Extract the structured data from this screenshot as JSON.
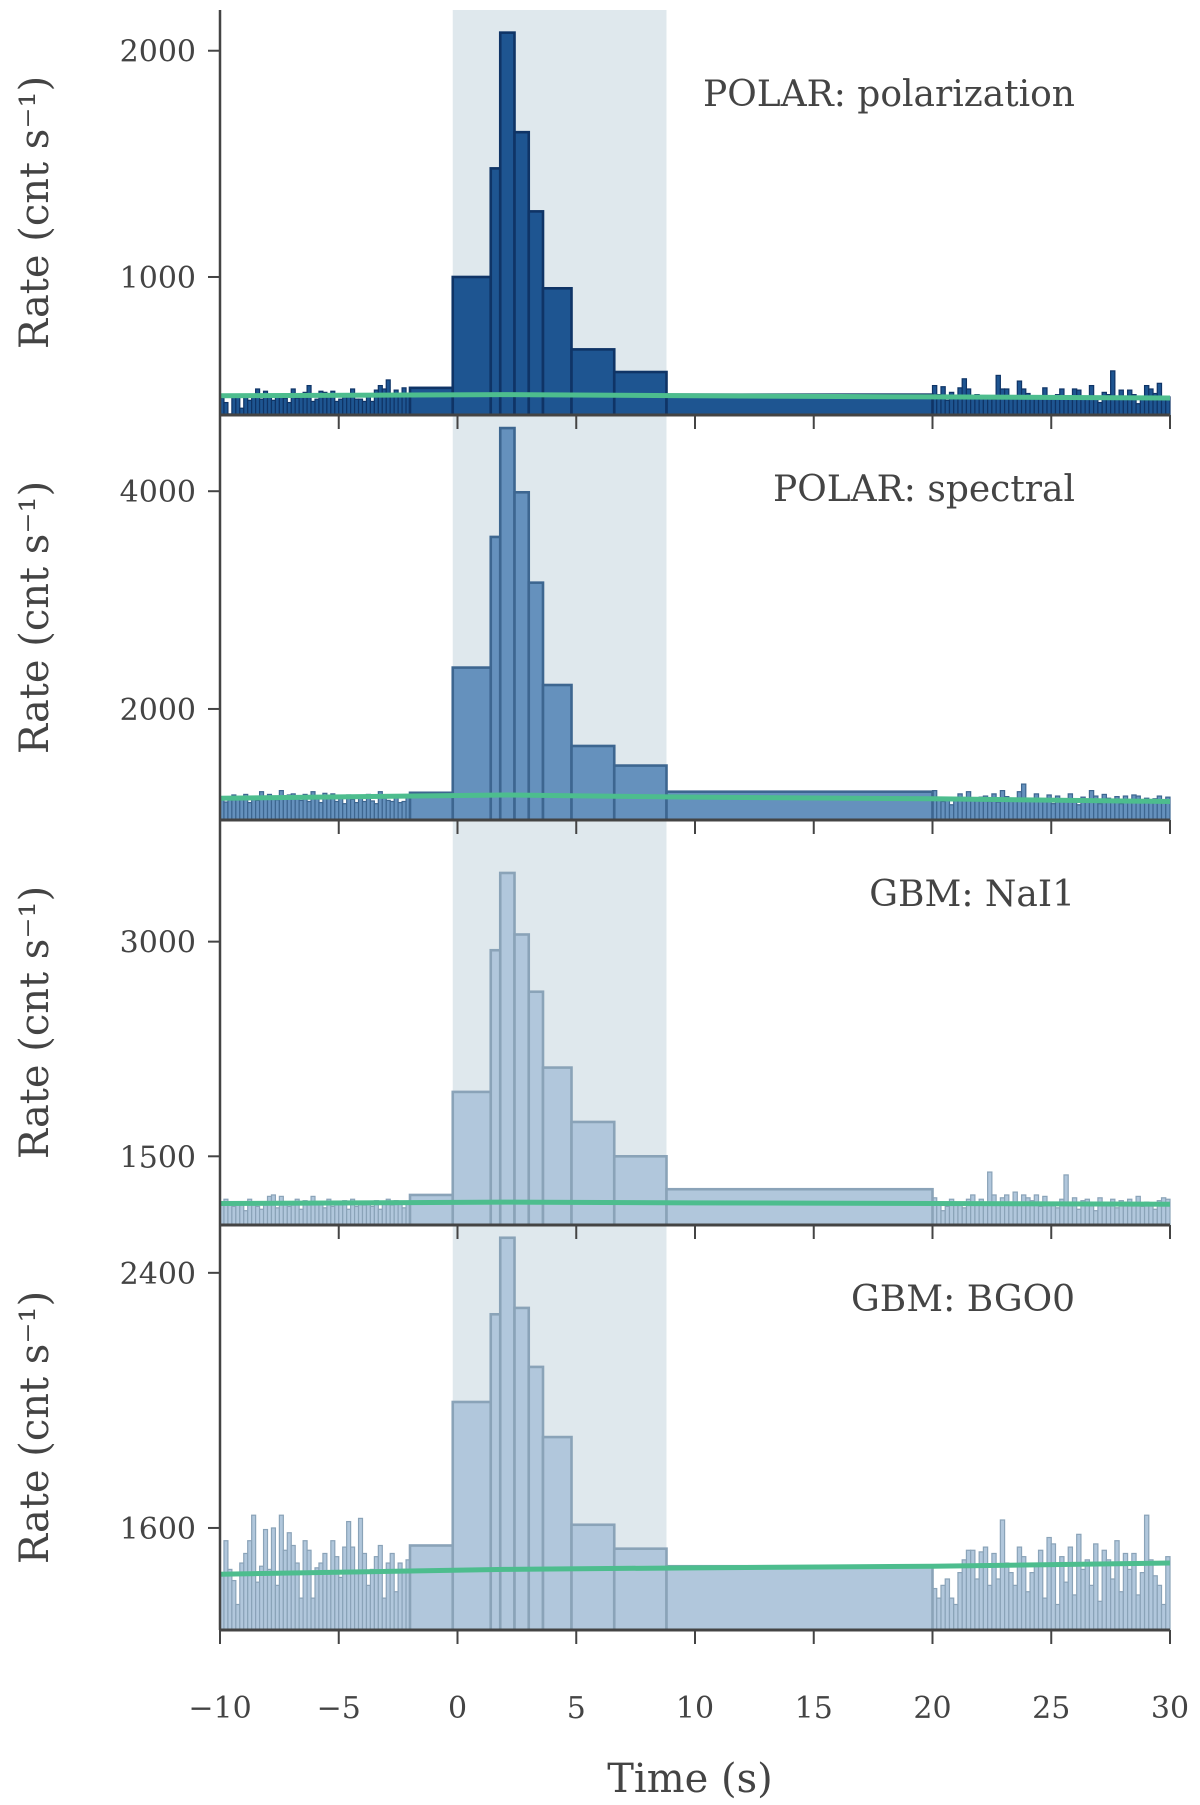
{
  "figure": {
    "xlabel": "Time (s)",
    "ylabel": "Rate (cnt s⁻¹)",
    "xlim": [
      -10,
      30
    ],
    "xticks": [
      -10,
      -5,
      0,
      5,
      10,
      15,
      20,
      25,
      30
    ],
    "xtick_labels": [
      "−10",
      "−5",
      "0",
      "5",
      "10",
      "15",
      "20",
      "25",
      "30"
    ],
    "shaded_interval": [
      -0.2,
      8.8
    ],
    "colors": {
      "background_line": "#4dbd8e",
      "shade": "#dfe8ed",
      "axis": "#444444"
    }
  },
  "chart_data": [
    {
      "type": "bar",
      "title": "POLAR: polarization",
      "xlabel": "",
      "ylabel": "Rate (cnt s⁻¹)",
      "ylim": [
        390,
        2180
      ],
      "yticks": [
        1000,
        2000
      ],
      "fill": "#1e5591",
      "edge": "#0f3466",
      "bins": [
        {
          "x0": -2,
          "x1": -0.2,
          "y": 510
        },
        {
          "x0": -0.2,
          "x1": 1.4,
          "y": 1000
        },
        {
          "x0": 1.4,
          "x1": 1.8,
          "y": 1480
        },
        {
          "x0": 1.8,
          "x1": 2.4,
          "y": 2080
        },
        {
          "x0": 2.4,
          "x1": 3.0,
          "y": 1640
        },
        {
          "x0": 3.0,
          "x1": 3.6,
          "y": 1290
        },
        {
          "x0": 3.6,
          "x1": 4.8,
          "y": 950
        },
        {
          "x0": 4.8,
          "x1": 6.6,
          "y": 680
        },
        {
          "x0": 6.6,
          "x1": 8.8,
          "y": 580
        },
        {
          "x0": 8.8,
          "x1": 20,
          "y": 480
        }
      ],
      "noise_pre": [
        465,
        445,
        395,
        470,
        470,
        420,
        470,
        455,
        470,
        505,
        460,
        495,
        470,
        455,
        475,
        480,
        465,
        445,
        505,
        465,
        470,
        490,
        520,
        450,
        460,
        495,
        490,
        470,
        495,
        450,
        460,
        470,
        470,
        505,
        460,
        460,
        450,
        470,
        450,
        500,
        520,
        505,
        545,
        470,
        500,
        475,
        510,
        470
      ],
      "noise_post": [
        520,
        480,
        515,
        455,
        490,
        475,
        510,
        550,
        505,
        475,
        480,
        465,
        470,
        470,
        460,
        565,
        505,
        505,
        465,
        470,
        540,
        505,
        485,
        470,
        475,
        465,
        510,
        465,
        460,
        480,
        505,
        470,
        475,
        505,
        500,
        460,
        470,
        520,
        460,
        445,
        490,
        480,
        585,
        470,
        500,
        470,
        500,
        480,
        440,
        460,
        520,
        505,
        485,
        530,
        460,
        470
      ],
      "background": [
        [
          -10,
          475
        ],
        [
          2,
          480
        ],
        [
          10,
          475
        ],
        [
          20,
          470
        ],
        [
          30,
          465
        ]
      ]
    },
    {
      "type": "bar",
      "title": "POLAR: spectral",
      "xlabel": "",
      "ylabel": "Rate (cnt s⁻¹)",
      "ylim": [
        980,
        4700
      ],
      "yticks": [
        2000,
        4000
      ],
      "fill": "#6591bd",
      "edge": "#3d6690",
      "bins": [
        {
          "x0": -2,
          "x1": -0.2,
          "y": 1230
        },
        {
          "x0": -0.2,
          "x1": 1.4,
          "y": 2380
        },
        {
          "x0": 1.4,
          "x1": 1.8,
          "y": 3580
        },
        {
          "x0": 1.8,
          "x1": 2.4,
          "y": 4580
        },
        {
          "x0": 2.4,
          "x1": 3.0,
          "y": 3990
        },
        {
          "x0": 3.0,
          "x1": 3.6,
          "y": 3160
        },
        {
          "x0": 3.6,
          "x1": 4.8,
          "y": 2220
        },
        {
          "x0": 4.8,
          "x1": 6.6,
          "y": 1660
        },
        {
          "x0": 6.6,
          "x1": 8.8,
          "y": 1480
        },
        {
          "x0": 8.8,
          "x1": 20,
          "y": 1240
        }
      ],
      "noise_pre": [
        1170,
        1145,
        1180,
        1210,
        1175,
        1180,
        1215,
        1140,
        1190,
        1160,
        1240,
        1170,
        1215,
        1200,
        1165,
        1250,
        1170,
        1210,
        1220,
        1195,
        1160,
        1215,
        1150,
        1240,
        1180,
        1140,
        1225,
        1200,
        1220,
        1150,
        1190,
        1130,
        1210,
        1170,
        1140,
        1180,
        1150,
        1215,
        1155,
        1130,
        1240,
        1180,
        1160,
        1150,
        1200,
        1140,
        1150,
        1190
      ],
      "noise_post": [
        1250,
        1180,
        1150,
        1170,
        1120,
        1180,
        1220,
        1165,
        1240,
        1160,
        1160,
        1190,
        1200,
        1150,
        1220,
        1145,
        1250,
        1195,
        1150,
        1170,
        1240,
        1310,
        1160,
        1170,
        1220,
        1150,
        1175,
        1210,
        1130,
        1200,
        1165,
        1150,
        1220,
        1160,
        1120,
        1190,
        1170,
        1250,
        1200,
        1130,
        1215,
        1180,
        1150,
        1195,
        1130,
        1200,
        1140,
        1210,
        1200,
        1150,
        1180,
        1140,
        1175,
        1200,
        1145,
        1190
      ],
      "background": [
        [
          -10,
          1180
        ],
        [
          2,
          1210
        ],
        [
          10,
          1190
        ],
        [
          20,
          1175
        ],
        [
          30,
          1150
        ]
      ]
    },
    {
      "type": "bar",
      "title": "GBM: NaI1",
      "xlabel": "",
      "ylabel": "Rate (cnt s⁻¹)",
      "ylim": [
        1020,
        3850
      ],
      "yticks": [
        1500,
        3000
      ],
      "fill": "#b1c7dc",
      "edge": "#8aa3b8",
      "bins": [
        {
          "x0": -2,
          "x1": -0.2,
          "y": 1230
        },
        {
          "x0": -0.2,
          "x1": 1.4,
          "y": 1950
        },
        {
          "x0": 1.4,
          "x1": 1.8,
          "y": 2940
        },
        {
          "x0": 1.8,
          "x1": 2.4,
          "y": 3480
        },
        {
          "x0": 2.4,
          "x1": 3.0,
          "y": 3050
        },
        {
          "x0": 3.0,
          "x1": 3.6,
          "y": 2650
        },
        {
          "x0": 3.6,
          "x1": 4.8,
          "y": 2120
        },
        {
          "x0": 4.8,
          "x1": 6.6,
          "y": 1740
        },
        {
          "x0": 6.6,
          "x1": 8.8,
          "y": 1500
        },
        {
          "x0": 8.8,
          "x1": 20,
          "y": 1270
        }
      ],
      "noise_pre": [
        1170,
        1200,
        1160,
        1150,
        1180,
        1170,
        1120,
        1200,
        1170,
        1150,
        1130,
        1180,
        1220,
        1230,
        1140,
        1220,
        1170,
        1150,
        1160,
        1200,
        1130,
        1190,
        1160,
        1220,
        1170,
        1180,
        1140,
        1200,
        1150,
        1170,
        1180,
        1190,
        1130,
        1200,
        1150,
        1170,
        1160,
        1180,
        1150,
        1190,
        1130,
        1170,
        1200,
        1160,
        1190,
        1180,
        1140,
        1170
      ],
      "noise_post": [
        1210,
        1160,
        1120,
        1150,
        1200,
        1180,
        1170,
        1140,
        1200,
        1230,
        1160,
        1200,
        1170,
        1390,
        1230,
        1170,
        1210,
        1230,
        1160,
        1250,
        1170,
        1230,
        1210,
        1190,
        1230,
        1150,
        1220,
        1160,
        1180,
        1140,
        1200,
        1370,
        1160,
        1210,
        1130,
        1190,
        1200,
        1170,
        1120,
        1210,
        1180,
        1160,
        1200,
        1140,
        1190,
        1180,
        1200,
        1160,
        1220,
        1150,
        1180,
        1170,
        1130,
        1190,
        1210,
        1200
      ],
      "background": [
        [
          -10,
          1170
        ],
        [
          2,
          1180
        ],
        [
          10,
          1175
        ],
        [
          20,
          1170
        ],
        [
          30,
          1165
        ]
      ]
    },
    {
      "type": "bar",
      "title": "GBM: BGO0",
      "xlabel": "",
      "ylabel": "Rate (cnt s⁻¹)",
      "ylim": [
        1280,
        2550
      ],
      "yticks": [
        1600,
        2400
      ],
      "fill": "#b1c7dc",
      "edge": "#8aa3b8",
      "bins": [
        {
          "x0": -2,
          "x1": -0.2,
          "y": 1545
        },
        {
          "x0": -0.2,
          "x1": 1.4,
          "y": 1995
        },
        {
          "x0": 1.4,
          "x1": 1.8,
          "y": 2270
        },
        {
          "x0": 1.8,
          "x1": 2.4,
          "y": 2510
        },
        {
          "x0": 2.4,
          "x1": 3.0,
          "y": 2290
        },
        {
          "x0": 3.0,
          "x1": 3.6,
          "y": 2105
        },
        {
          "x0": 3.6,
          "x1": 4.8,
          "y": 1885
        },
        {
          "x0": 4.8,
          "x1": 6.6,
          "y": 1610
        },
        {
          "x0": 6.6,
          "x1": 8.8,
          "y": 1535
        },
        {
          "x0": 8.8,
          "x1": 20,
          "y": 1480
        }
      ],
      "noise_pre": [
        1455,
        1560,
        1470,
        1435,
        1360,
        1490,
        1520,
        1560,
        1640,
        1430,
        1480,
        1595,
        1470,
        1600,
        1420,
        1640,
        1530,
        1585,
        1545,
        1490,
        1380,
        1560,
        1530,
        1380,
        1475,
        1490,
        1520,
        1460,
        1560,
        1510,
        1445,
        1540,
        1620,
        1540,
        1460,
        1630,
        1520,
        1420,
        1470,
        1510,
        1545,
        1380,
        1490,
        1520,
        1400,
        1490,
        1470,
        1500
      ],
      "noise_post": [
        1410,
        1380,
        1420,
        1440,
        1380,
        1360,
        1460,
        1500,
        1530,
        1530,
        1440,
        1525,
        1540,
        1420,
        1520,
        1440,
        1625,
        1490,
        1460,
        1420,
        1540,
        1510,
        1400,
        1460,
        1480,
        1530,
        1380,
        1570,
        1550,
        1360,
        1510,
        1430,
        1540,
        1390,
        1580,
        1470,
        1500,
        1420,
        1550,
        1370,
        1530,
        1500,
        1440,
        1560,
        1400,
        1520,
        1470,
        1520,
        1390,
        1460,
        1640,
        1500,
        1450,
        1420,
        1360,
        1510
      ],
      "background": [
        [
          -10,
          1455
        ],
        [
          2,
          1470
        ],
        [
          10,
          1475
        ],
        [
          20,
          1480
        ],
        [
          30,
          1490
        ]
      ]
    }
  ]
}
